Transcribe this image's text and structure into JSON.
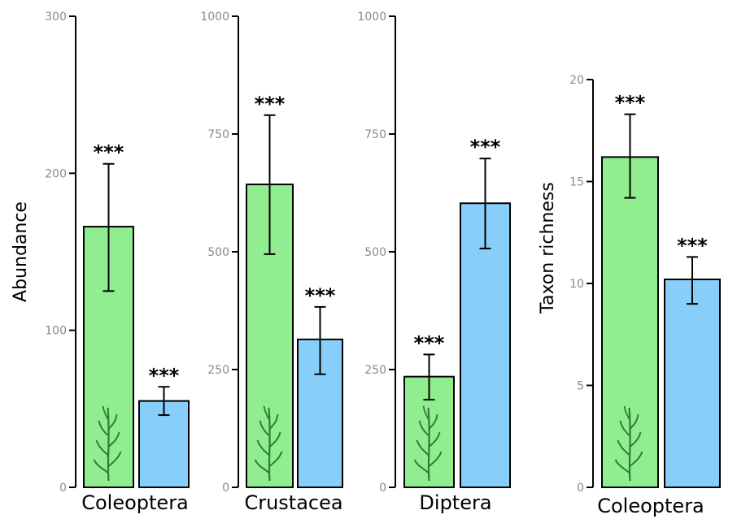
{
  "colors": {
    "green": "#90ee90",
    "blue": "#87cefa",
    "axis": "#000000",
    "tick_text": "#8a8a8a"
  },
  "chart_data": [
    {
      "type": "bar",
      "categories": [
        "Coleoptera"
      ],
      "ylabel": "Abundance",
      "ylim": [
        0,
        300
      ],
      "yticks": [
        "0",
        "100",
        "200",
        "300"
      ],
      "series": [
        {
          "values": [
            166
          ],
          "err_low": [
            125
          ],
          "err_high": [
            206
          ],
          "sig": "***"
        },
        {
          "values": [
            55
          ],
          "err_low": [
            46
          ],
          "err_high": [
            64
          ],
          "sig": "***"
        }
      ]
    },
    {
      "type": "bar",
      "categories": [
        "Crustacea"
      ],
      "ylabel": "",
      "ylim": [
        0,
        1000
      ],
      "yticks": [
        "0",
        "250",
        "500",
        "750",
        "1000"
      ],
      "series": [
        {
          "values": [
            643
          ],
          "err_low": [
            495
          ],
          "err_high": [
            790
          ],
          "sig": "***"
        },
        {
          "values": [
            314
          ],
          "err_low": [
            240
          ],
          "err_high": [
            383
          ],
          "sig": "***"
        }
      ]
    },
    {
      "type": "bar",
      "categories": [
        "Diptera"
      ],
      "ylabel": "",
      "ylim": [
        0,
        1000
      ],
      "yticks": [
        "0",
        "250",
        "500",
        "750",
        "1000"
      ],
      "series": [
        {
          "values": [
            235
          ],
          "err_low": [
            186
          ],
          "err_high": [
            282
          ],
          "sig": "***"
        },
        {
          "values": [
            603
          ],
          "err_low": [
            507
          ],
          "err_high": [
            698
          ],
          "sig": "***"
        }
      ]
    },
    {
      "type": "bar",
      "categories": [
        "Coleoptera"
      ],
      "ylabel": "Taxon richness",
      "ylim": [
        0,
        20
      ],
      "yticks": [
        "0",
        "5",
        "10",
        "15",
        "20"
      ],
      "series": [
        {
          "values": [
            16.2
          ],
          "err_low": [
            14.2
          ],
          "err_high": [
            18.3
          ],
          "sig": "***"
        },
        {
          "values": [
            10.2
          ],
          "err_low": [
            9.0
          ],
          "err_high": [
            11.3
          ],
          "sig": "***"
        }
      ]
    }
  ],
  "icons": {
    "plant": "plant-icon"
  }
}
